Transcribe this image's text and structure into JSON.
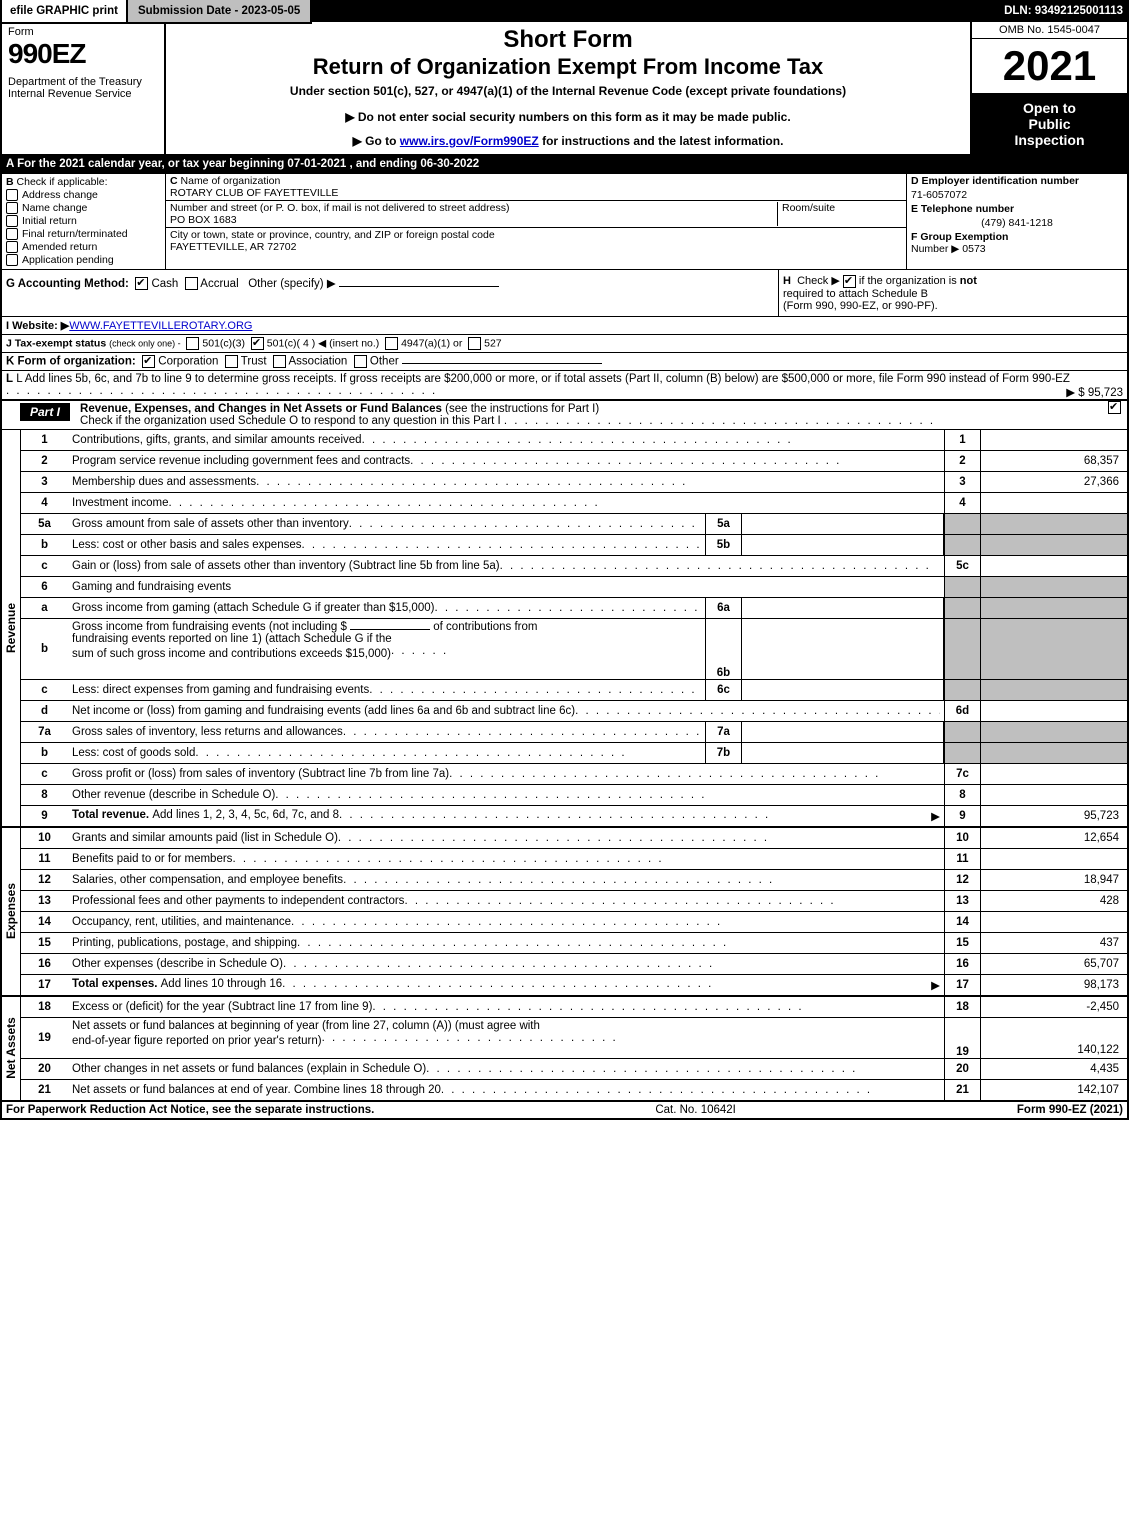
{
  "topbar": {
    "efile": "efile GRAPHIC print",
    "submission": "Submission Date - 2023-05-05",
    "dln": "DLN: 93492125001113"
  },
  "header": {
    "form_word": "Form",
    "form_name": "990EZ",
    "department": "Department of the Treasury",
    "irs": "Internal Revenue Service",
    "short_form": "Short Form",
    "return_title": "Return of Organization Exempt From Income Tax",
    "under_section": "Under section 501(c), 527, or 4947(a)(1) of the Internal Revenue Code (except private foundations)",
    "instr1": "▶ Do not enter social security numbers on this form as it may be made public.",
    "instr2_pre": "▶ Go to ",
    "instr2_link": "www.irs.gov/Form990EZ",
    "instr2_post": " for instructions and the latest information.",
    "omb": "OMB No. 1545-0047",
    "year": "2021",
    "open_line1": "Open to",
    "open_line2": "Public",
    "open_line3": "Inspection"
  },
  "row_a": "A  For the 2021 calendar year, or tax year beginning 07-01-2021 , and ending 06-30-2022",
  "section_b": {
    "title": "B",
    "subtitle": "Check if applicable:",
    "items": [
      "Address change",
      "Name change",
      "Initial return",
      "Final return/terminated",
      "Amended return",
      "Application pending"
    ]
  },
  "section_c": {
    "c_label": "C",
    "name_label": "Name of organization",
    "name": "ROTARY CLUB OF FAYETTEVILLE",
    "addr_label": "Number and street (or P. O. box, if mail is not delivered to street address)",
    "room_label": "Room/suite",
    "addr": "PO BOX 1683",
    "city_label": "City or town, state or province, country, and ZIP or foreign postal code",
    "city": "FAYETTEVILLE, AR  72702"
  },
  "section_def": {
    "d_label": "D Employer identification number",
    "d_val": "71-6057072",
    "e_label": "E Telephone number",
    "e_val": "(479) 841-1218",
    "f_label": "F Group Exemption",
    "f_label2": "Number ▶",
    "f_val": "0573"
  },
  "g": {
    "label": "G Accounting Method:",
    "cash": "Cash",
    "accrual": "Accrual",
    "other": "Other (specify) ▶"
  },
  "h": {
    "label_pre": "H",
    "text1": "Check ▶",
    "text2": "if the organization is ",
    "text_not": "not",
    "text3": "required to attach Schedule B",
    "text4": "(Form 990, 990-EZ, or 990-PF)."
  },
  "i_label": "I Website: ▶",
  "i_val": "WWW.FAYETTEVILLEROTARY.ORG",
  "j": {
    "label": "J Tax-exempt status",
    "sub": "(check only one) -",
    "opt1": "501(c)(3)",
    "opt2": "501(c)( 4 ) ◀ (insert no.)",
    "opt3": "4947(a)(1) or",
    "opt4": "527"
  },
  "k": {
    "label": "K Form of organization:",
    "corp": "Corporation",
    "trust": "Trust",
    "assoc": "Association",
    "other": "Other"
  },
  "l": {
    "text": "L Add lines 5b, 6c, and 7b to line 9 to determine gross receipts. If gross receipts are $200,000 or more, or if total assets (Part II, column (B) below) are $500,000 or more, file Form 990 instead of Form 990-EZ",
    "val": "▶ $ 95,723"
  },
  "part1": {
    "label": "Part I",
    "title": "Revenue, Expenses, and Changes in Net Assets or Fund Balances",
    "title_sub": "(see the instructions for Part I)",
    "check_text": "Check if the organization used Schedule O to respond to any question in this Part I"
  },
  "revenue_lines": [
    {
      "no": "1",
      "label": "Contributions, gifts, grants, and similar amounts received",
      "end_no": "1",
      "end_val": ""
    },
    {
      "no": "2",
      "label": "Program service revenue including government fees and contracts",
      "end_no": "2",
      "end_val": "68,357"
    },
    {
      "no": "3",
      "label": "Membership dues and assessments",
      "end_no": "3",
      "end_val": "27,366"
    },
    {
      "no": "4",
      "label": "Investment income",
      "end_no": "4",
      "end_val": ""
    }
  ],
  "line5a": {
    "no": "5a",
    "label": "Gross amount from sale of assets other than inventory",
    "mid_no": "5a"
  },
  "line5b": {
    "no": "b",
    "label": "Less: cost or other basis and sales expenses",
    "mid_no": "5b"
  },
  "line5c": {
    "no": "c",
    "label": "Gain or (loss) from sale of assets other than inventory (Subtract line 5b from line 5a)",
    "end_no": "5c"
  },
  "line6": {
    "no": "6",
    "label": "Gaming and fundraising events"
  },
  "line6a": {
    "no": "a",
    "label": "Gross income from gaming (attach Schedule G if greater than $15,000)",
    "mid_no": "6a"
  },
  "line6b": {
    "no": "b",
    "label": "Gross income from fundraising events (not including $",
    "label2": "of contributions from",
    "label3": "fundraising events reported on line 1) (attach Schedule G if the",
    "label4": "sum of such gross income and contributions exceeds $15,000)",
    "mid_no": "6b"
  },
  "line6c": {
    "no": "c",
    "label": "Less: direct expenses from gaming and fundraising events",
    "mid_no": "6c"
  },
  "line6d": {
    "no": "d",
    "label": "Net income or (loss) from gaming and fundraising events (add lines 6a and 6b and subtract line 6c)",
    "end_no": "6d"
  },
  "line7a": {
    "no": "7a",
    "label": "Gross sales of inventory, less returns and allowances",
    "mid_no": "7a"
  },
  "line7b": {
    "no": "b",
    "label": "Less: cost of goods sold",
    "mid_no": "7b"
  },
  "line7c": {
    "no": "c",
    "label": "Gross profit or (loss) from sales of inventory (Subtract line 7b from line 7a)",
    "end_no": "7c"
  },
  "line8": {
    "no": "8",
    "label": "Other revenue (describe in Schedule O)",
    "end_no": "8"
  },
  "line9": {
    "no": "9",
    "label": "Total revenue. ",
    "label2": "Add lines 1, 2, 3, 4, 5c, 6d, 7c, and 8",
    "end_no": "9",
    "end_val": "95,723"
  },
  "expense_lines": [
    {
      "no": "10",
      "label": "Grants and similar amounts paid (list in Schedule O)",
      "end_no": "10",
      "end_val": "12,654"
    },
    {
      "no": "11",
      "label": "Benefits paid to or for members",
      "end_no": "11",
      "end_val": ""
    },
    {
      "no": "12",
      "label": "Salaries, other compensation, and employee benefits",
      "end_no": "12",
      "end_val": "18,947"
    },
    {
      "no": "13",
      "label": "Professional fees and other payments to independent contractors",
      "end_no": "13",
      "end_val": "428"
    },
    {
      "no": "14",
      "label": "Occupancy, rent, utilities, and maintenance",
      "end_no": "14",
      "end_val": ""
    },
    {
      "no": "15",
      "label": "Printing, publications, postage, and shipping",
      "end_no": "15",
      "end_val": "437"
    },
    {
      "no": "16",
      "label": "Other expenses (describe in Schedule O)",
      "end_no": "16",
      "end_val": "65,707"
    }
  ],
  "line17": {
    "no": "17",
    "label": "Total expenses. ",
    "label2": "Add lines 10 through 16",
    "end_no": "17",
    "end_val": "98,173"
  },
  "netassets_lines": [
    {
      "no": "18",
      "label": "Excess or (deficit) for the year (Subtract line 17 from line 9)",
      "end_no": "18",
      "end_val": "-2,450"
    }
  ],
  "line19": {
    "no": "19",
    "label": "Net assets or fund balances at beginning of year (from line 27, column (A)) (must agree with",
    "label2": "end-of-year figure reported on prior year's return)",
    "end_no": "19",
    "end_val": "140,122"
  },
  "line20": {
    "no": "20",
    "label": "Other changes in net assets or fund balances (explain in Schedule O)",
    "end_no": "20",
    "end_val": "4,435"
  },
  "line21": {
    "no": "21",
    "label": "Net assets or fund balances at end of year. Combine lines 18 through 20",
    "end_no": "21",
    "end_val": "142,107"
  },
  "footer": {
    "left": "For Paperwork Reduction Act Notice, see the separate instructions.",
    "mid": "Cat. No. 10642I",
    "right_pre": "Form ",
    "right_bold": "990-EZ",
    "right_post": " (2021)"
  },
  "vert_labels": {
    "revenue": "Revenue",
    "expenses": "Expenses",
    "netassets": "Net Assets"
  }
}
